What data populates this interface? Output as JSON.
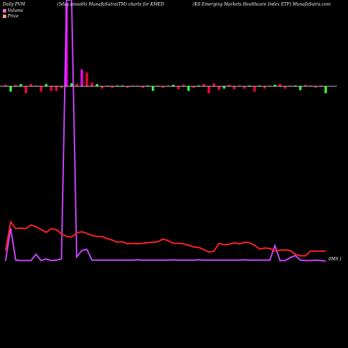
{
  "header": {
    "left": "Daily PVM",
    "middle": "(5day smooth) MunafaSutra(TM) charts for KMED",
    "right": "(KS Emerging Markets Healthcare   Index ETF) MunafaSutra.com"
  },
  "legend": {
    "volume_label": "Volume",
    "price_label": "Price",
    "volume_color": "#ff66cc",
    "price_color": "#ff9966"
  },
  "end_label": "0MS )",
  "colors": {
    "background": "#000000",
    "volume_up": "#ff00ff",
    "bar_down": "#ff0033",
    "bar_up": "#33ff33",
    "price_line": "#ff2222",
    "volume_line": "#cc44ff",
    "zero_line": "#ffffff"
  },
  "chart_data": {
    "type": "line",
    "n_days": 64,
    "series": [
      {
        "name": "Price",
        "values": [
          0.2,
          0.75,
          0.62,
          0.63,
          0.62,
          0.69,
          0.66,
          0.6,
          0.55,
          0.62,
          0.6,
          0.52,
          0.47,
          0.46,
          0.54,
          0.56,
          0.53,
          0.49,
          0.47,
          0.47,
          0.43,
          0.4,
          0.36,
          0.37,
          0.33,
          0.34,
          0.33,
          0.34,
          0.35,
          0.36,
          0.37,
          0.42,
          0.39,
          0.34,
          0.34,
          0.33,
          0.3,
          0.27,
          0.26,
          0.22,
          0.17,
          0.19,
          0.34,
          0.31,
          0.32,
          0.35,
          0.33,
          0.36,
          0.35,
          0.3,
          0.23,
          0.25,
          0.24,
          0.19,
          0.21,
          0.21,
          0.2,
          0.13,
          0.1,
          0.1,
          0.19,
          0.19,
          0.19,
          0.19
        ]
      },
      {
        "name": "Volume",
        "values": [
          0.0,
          0.79,
          0.02,
          0.01,
          0.01,
          0.01,
          0.16,
          0.01,
          0.05,
          0.01,
          0.02,
          0.05,
          12.5,
          11.8,
          0.1,
          0.25,
          0.28,
          0.02,
          0.02,
          0.02,
          0.02,
          0.02,
          0.02,
          0.02,
          0.02,
          0.02,
          0.03,
          0.02,
          0.02,
          0.02,
          0.02,
          0.02,
          0.02,
          0.03,
          0.02,
          0.02,
          0.02,
          0.02,
          0.03,
          0.02,
          0.02,
          0.02,
          0.02,
          0.02,
          0.02,
          0.02,
          0.02,
          0.03,
          0.02,
          0.02,
          0.02,
          0.02,
          0.02,
          0.37,
          0.01,
          0.01,
          0.08,
          0.13,
          0.02,
          0.01,
          0.01,
          0.02,
          0.01,
          0.0
        ]
      },
      {
        "name": "Change",
        "values": [
          2,
          -7,
          2,
          3,
          -9,
          3,
          1,
          -7,
          3,
          -6,
          -6,
          -2,
          108,
          4,
          3,
          22,
          18,
          5,
          3,
          -3,
          1,
          -2,
          1,
          1,
          -2,
          1,
          1,
          -2,
          1,
          -6,
          1,
          -2,
          1,
          2,
          -4,
          2,
          -6,
          -2,
          1,
          3,
          -9,
          4,
          -5,
          -3,
          2,
          -4,
          1,
          -3,
          1,
          -7,
          1,
          -3,
          1,
          2,
          3,
          -3,
          1,
          1,
          -5,
          2,
          1,
          -2,
          1,
          -9
        ]
      }
    ]
  }
}
